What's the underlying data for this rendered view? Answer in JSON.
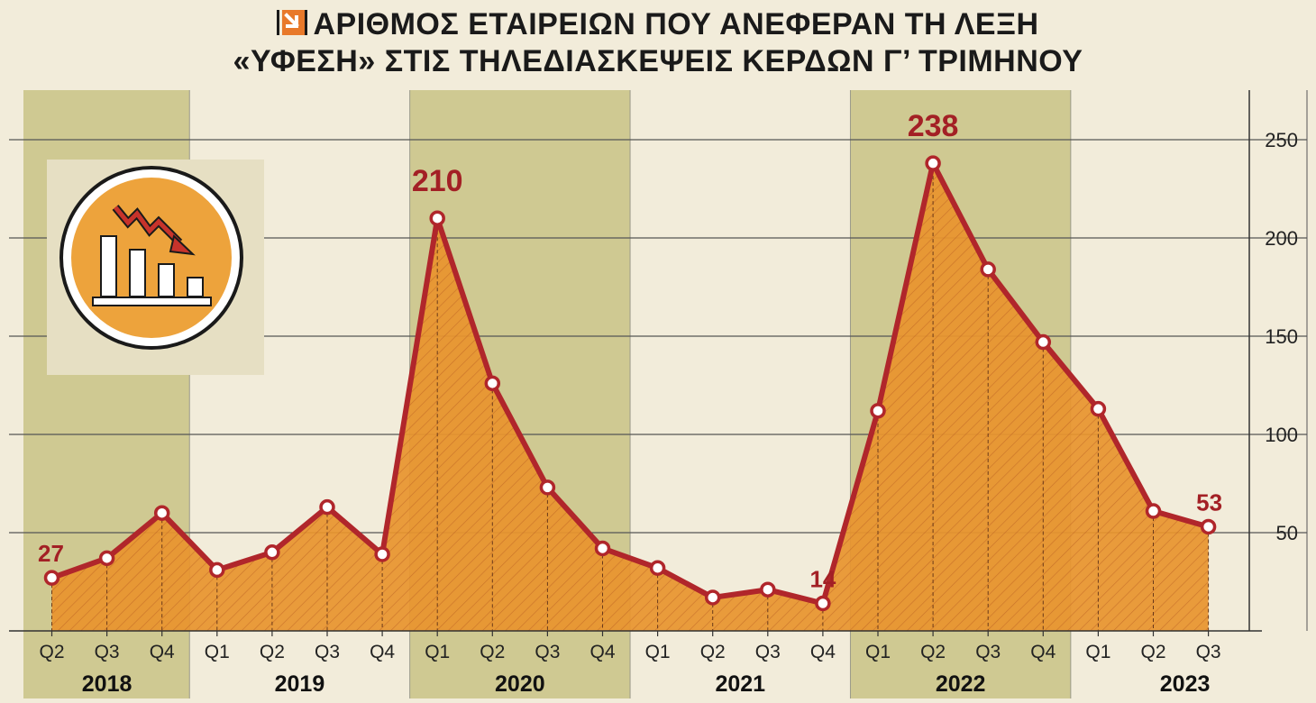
{
  "title": {
    "line1": "ΑΡΙΘΜΟΣ ΕΤΑΙΡΕΙΩΝ ΠΟΥ ΑΝΕΦΕΡΑΝ ΤΗ ΛΕΞΗ",
    "line2": "«ΥΦΕΣΗ» ΣΤΙΣ ΤΗΛΕΔΙΑΣΚΕΨΕΙΣ ΚΕΡΔΩΝ Γ’ ΤΡΙΜΗΝΟΥ"
  },
  "icons": {
    "brand_logo": "arrow-down-right-icon",
    "illustration": "declining-bar-chart-icon"
  },
  "colors": {
    "background": "#f2ecda",
    "band": "#cfc992",
    "area": "#e8952e",
    "line": "#b0262b",
    "label": "#a32025",
    "illustration_circle": "#eda33c"
  },
  "chart_data": {
    "type": "area",
    "x": [
      {
        "quarter": "Q2",
        "year": "2018"
      },
      {
        "quarter": "Q3",
        "year": "2018"
      },
      {
        "quarter": "Q4",
        "year": "2018"
      },
      {
        "quarter": "Q1",
        "year": "2019"
      },
      {
        "quarter": "Q2",
        "year": "2019"
      },
      {
        "quarter": "Q3",
        "year": "2019"
      },
      {
        "quarter": "Q4",
        "year": "2019"
      },
      {
        "quarter": "Q1",
        "year": "2020"
      },
      {
        "quarter": "Q2",
        "year": "2020"
      },
      {
        "quarter": "Q3",
        "year": "2020"
      },
      {
        "quarter": "Q4",
        "year": "2020"
      },
      {
        "quarter": "Q1",
        "year": "2021"
      },
      {
        "quarter": "Q2",
        "year": "2021"
      },
      {
        "quarter": "Q3",
        "year": "2021"
      },
      {
        "quarter": "Q4",
        "year": "2021"
      },
      {
        "quarter": "Q1",
        "year": "2022"
      },
      {
        "quarter": "Q2",
        "year": "2022"
      },
      {
        "quarter": "Q3",
        "year": "2022"
      },
      {
        "quarter": "Q4",
        "year": "2022"
      },
      {
        "quarter": "Q1",
        "year": "2023"
      },
      {
        "quarter": "Q2",
        "year": "2023"
      },
      {
        "quarter": "Q3",
        "year": "2023"
      }
    ],
    "values": [
      27,
      37,
      60,
      31,
      40,
      63,
      39,
      210,
      126,
      73,
      42,
      32,
      17,
      21,
      14,
      112,
      238,
      184,
      147,
      113,
      61,
      53
    ],
    "data_labels": [
      {
        "index": 0,
        "text": "27"
      },
      {
        "index": 7,
        "text": "210"
      },
      {
        "index": 14,
        "text": "14"
      },
      {
        "index": 16,
        "text": "238"
      },
      {
        "index": 21,
        "text": "53"
      }
    ],
    "years": [
      "2018",
      "2019",
      "2020",
      "2021",
      "2022",
      "2023"
    ],
    "shaded_years": [
      "2018",
      "2020",
      "2022"
    ],
    "y_ticks": [
      50,
      100,
      150,
      200,
      250
    ],
    "ylim": [
      0,
      275
    ],
    "y_axis_position": "right",
    "grid": true
  }
}
